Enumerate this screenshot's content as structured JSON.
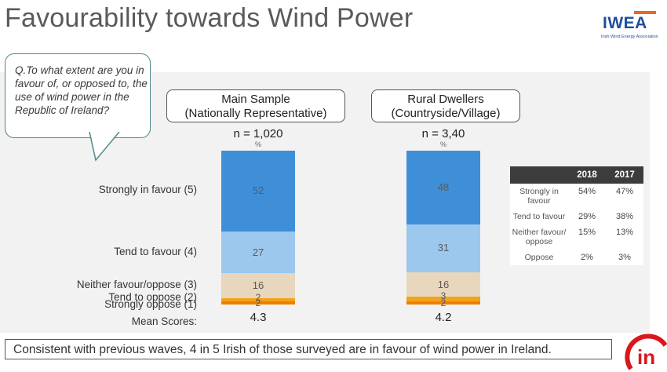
{
  "title": "Favourability towards Wind Power",
  "logo": {
    "main": "IWEA",
    "sub": "Irish Wind Energy Association"
  },
  "question": "Q.To what extent are you in favour of, or opposed to, the use of wind power in the Republic of Ireland?",
  "chart_data": {
    "type": "bar",
    "stacked": true,
    "categories": [
      "Main Sample (Nationally Representative)",
      "Rural Dwellers (Countryside/Village)"
    ],
    "groups": [
      {
        "line1": "Main Sample",
        "line2": "(Nationally Representative)",
        "n": "n = 1,020",
        "pct": "%",
        "mean_score": "4.3"
      },
      {
        "line1": "Rural Dwellers",
        "line2": "(Countryside/Village)",
        "n": "n = 3,40",
        "pct": "%",
        "mean_score": "4.2"
      }
    ],
    "series": [
      {
        "name": "Strongly in favour (5)",
        "values": [
          52,
          48
        ],
        "color": "#3f8fd8"
      },
      {
        "name": "Tend to favour (4)",
        "values": [
          27,
          31
        ],
        "color": "#9cc8ee"
      },
      {
        "name": "Neither favour/oppose (3)",
        "values": [
          16,
          16
        ],
        "color": "#e8d6bd"
      },
      {
        "name": "Tend to oppose (2)",
        "values": [
          2,
          3
        ],
        "color": "#f4a21a"
      },
      {
        "name": "Strongly oppose (1)",
        "values": [
          2,
          2
        ],
        "color": "#f07d00"
      }
    ],
    "mean_label": "Mean Scores:"
  },
  "comparison_table": {
    "headers": [
      "",
      "2018",
      "2017"
    ],
    "rows": [
      {
        "label": "Strongly in favour",
        "v2018": "54%",
        "v2017": "47%"
      },
      {
        "label": "Tend to favour",
        "v2018": "29%",
        "v2017": "38%"
      },
      {
        "label": "Neither favour/ oppose",
        "v2018": "15%",
        "v2017": "13%"
      },
      {
        "label": "Oppose",
        "v2018": "2%",
        "v2017": "3%"
      }
    ]
  },
  "footer": "Consistent with previous waves, 4 in 5 Irish of those surveyed are in favour of wind power in Ireland.",
  "corner_logo": "in"
}
